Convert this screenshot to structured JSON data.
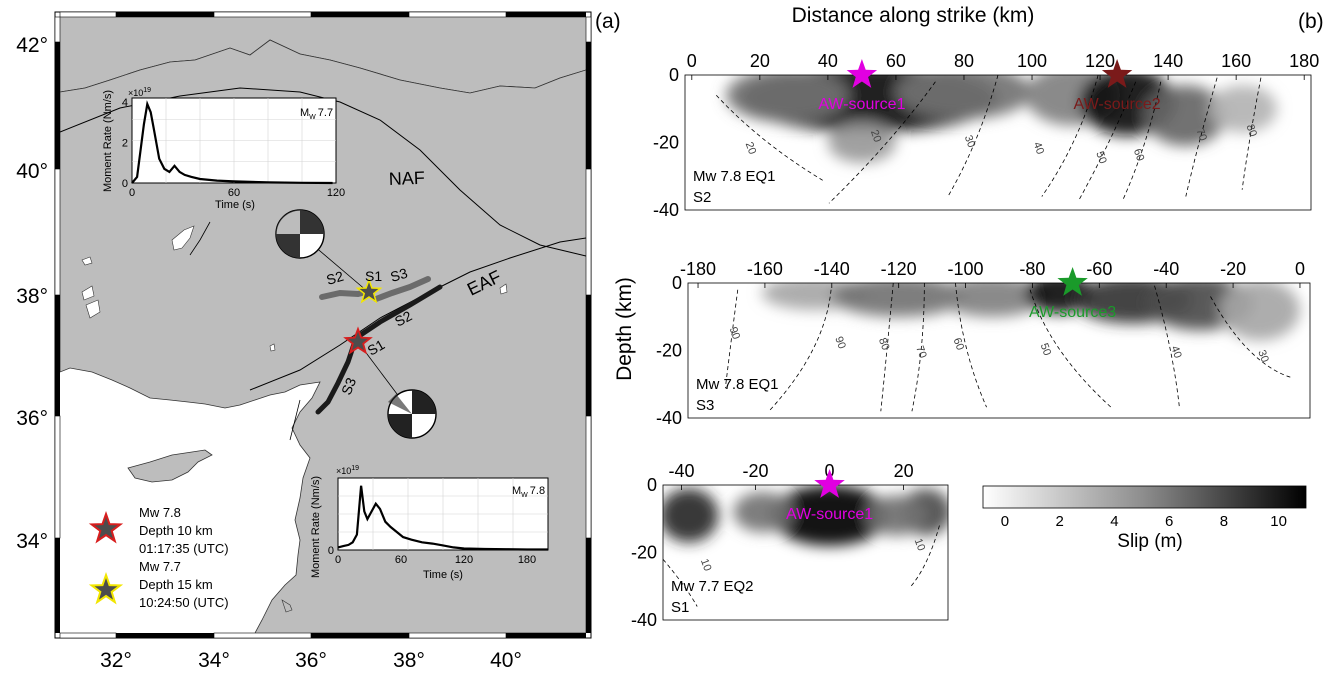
{
  "panel_a": {
    "label": "(a)",
    "lat_ticks": [
      "42°",
      "40°",
      "38°",
      "36°",
      "34°"
    ],
    "lon_ticks": [
      "32°",
      "34°",
      "36°",
      "38°",
      "40°"
    ],
    "fault_labels": {
      "naf": "NAF",
      "eaf": "EAF"
    },
    "mw78_segments": [
      "S1",
      "S2",
      "S3"
    ],
    "mw77_segments": [
      "S1",
      "S2",
      "S3"
    ],
    "legend": [
      {
        "lines": [
          "Mw 7.8",
          "Depth 10 km",
          "01:17:35 (UTC)"
        ],
        "star_fill": "#4d4d4d",
        "star_edge": "#d81e1e"
      },
      {
        "lines": [
          "Mw 7.7",
          "Depth 15 km",
          "10:24:50 (UTC)"
        ],
        "star_fill": "#4d4d4d",
        "star_edge": "#f2e600"
      }
    ],
    "insets": [
      {
        "magnitude": "M",
        "magnitude_sub": "W",
        "magnitude_value": "7.7",
        "ylabel": "Moment Rate (Nm/s)",
        "xlabel": "Time (s)",
        "exponent": "×10",
        "exponent_power": "19",
        "yticks": [
          "0",
          "2",
          "4"
        ],
        "xticks": [
          "0",
          "60",
          "120"
        ],
        "xlim": [
          0,
          120
        ],
        "ylim": [
          0,
          4.2
        ],
        "chart_data": {
          "type": "line",
          "t": [
            0,
            3,
            5,
            7,
            9,
            11,
            13,
            16,
            19,
            22,
            25,
            28,
            31,
            35,
            40,
            50,
            60,
            80,
            100,
            118
          ],
          "rate": [
            0,
            0.3,
            1.6,
            2.9,
            3.9,
            3.5,
            2.6,
            1.2,
            0.7,
            0.55,
            0.85,
            0.55,
            0.4,
            0.3,
            0.2,
            0.12,
            0.08,
            0.03,
            0.01,
            0
          ]
        }
      },
      {
        "magnitude": "M",
        "magnitude_sub": "W",
        "magnitude_value": "7.8",
        "ylabel": "Moment Rate (Nm/s)",
        "xlabel": "Time (s)",
        "exponent": "×10",
        "exponent_power": "19",
        "yticks": [
          "0"
        ],
        "xticks": [
          "0",
          "60",
          "120",
          "180"
        ],
        "xlim": [
          0,
          200
        ],
        "ylim": [
          0,
          2.8
        ],
        "chart_data": {
          "type": "line",
          "t": [
            0,
            5,
            10,
            14,
            18,
            22,
            25,
            28,
            32,
            36,
            40,
            45,
            50,
            56,
            62,
            70,
            80,
            90,
            100,
            110,
            120,
            140,
            160,
            180,
            200
          ],
          "rate": [
            0.1,
            0.15,
            0.2,
            0.3,
            0.6,
            2.5,
            1.5,
            1.2,
            1.5,
            1.8,
            1.6,
            1.1,
            0.9,
            0.7,
            0.5,
            0.4,
            0.3,
            0.25,
            0.18,
            0.1,
            0.06,
            0.04,
            0.03,
            0.02,
            0.02
          ]
        }
      }
    ]
  },
  "panel_b": {
    "label": "(b)",
    "top_axis_title": "Distance along strike (km)",
    "ylabel": "Depth (km)",
    "colorbar": {
      "label": "Slip (m)",
      "ticks": [
        "0",
        "2",
        "4",
        "6",
        "8",
        "10"
      ],
      "range": [
        -0.8,
        11
      ]
    },
    "panels": [
      {
        "name": "Mw 7.8 EQ1",
        "segment": "S2",
        "xticks": [
          "0",
          "20",
          "40",
          "60",
          "80",
          "100",
          "120",
          "140",
          "160",
          "180"
        ],
        "xlim": [
          -2,
          182
        ],
        "yticks": [
          "0",
          "-20",
          "-40"
        ],
        "ylim": [
          -40,
          0
        ],
        "sources": [
          {
            "label": "AW-source1",
            "x": 50,
            "color": "#e100e1"
          },
          {
            "label": "AW-source2",
            "x": 125,
            "color": "#7a1a1a"
          }
        ],
        "contours": [
          "20",
          "20",
          "30",
          "40",
          "50",
          "60",
          "70",
          "80"
        ],
        "slip": [
          {
            "x": 52,
            "z": -7,
            "w": 38,
            "h": 10,
            "amp": 0.95
          },
          {
            "x": 28,
            "z": -6,
            "w": 18,
            "h": 8,
            "amp": 0.55
          },
          {
            "x": 80,
            "z": -5,
            "w": 20,
            "h": 8,
            "amp": 0.55
          },
          {
            "x": 112,
            "z": -6,
            "w": 14,
            "h": 9,
            "amp": 0.5
          },
          {
            "x": 128,
            "z": -8,
            "w": 14,
            "h": 10,
            "amp": 0.95
          },
          {
            "x": 145,
            "z": -12,
            "w": 12,
            "h": 9,
            "amp": 0.6
          },
          {
            "x": 162,
            "z": -10,
            "w": 10,
            "h": 7,
            "amp": 0.3
          },
          {
            "x": 50,
            "z": -20,
            "w": 10,
            "h": 6,
            "amp": 0.4
          }
        ]
      },
      {
        "name": "Mw 7.8 EQ1",
        "segment": "S3",
        "xticks": [
          "-180",
          "-160",
          "-140",
          "-120",
          "-100",
          "-80",
          "-60",
          "-40",
          "-20",
          "0"
        ],
        "xlim": [
          -183,
          3
        ],
        "yticks": [
          "0",
          "-20",
          "-40"
        ],
        "ylim": [
          -40,
          0
        ],
        "sources": [
          {
            "label": "AW-source3",
            "x": -68,
            "color": "#1a9a2a"
          }
        ],
        "contours": [
          "90",
          "90",
          "80",
          "70",
          "60",
          "50",
          "40",
          "30"
        ],
        "slip": [
          {
            "x": -145,
            "z": -3,
            "w": 16,
            "h": 5,
            "amp": 0.35
          },
          {
            "x": -120,
            "z": -4,
            "w": 20,
            "h": 6,
            "amp": 0.55
          },
          {
            "x": -92,
            "z": -4,
            "w": 16,
            "h": 6,
            "amp": 0.5
          },
          {
            "x": -72,
            "z": -3,
            "w": 10,
            "h": 6,
            "amp": 0.95
          },
          {
            "x": -50,
            "z": -5,
            "w": 18,
            "h": 7,
            "amp": 0.8
          },
          {
            "x": -30,
            "z": -6,
            "w": 16,
            "h": 8,
            "amp": 0.7
          },
          {
            "x": -12,
            "z": -8,
            "w": 12,
            "h": 9,
            "amp": 0.35
          }
        ]
      },
      {
        "name": "Mw 7.7 EQ2",
        "segment": "S1",
        "xticks": [
          "-40",
          "-20",
          "0",
          "20"
        ],
        "xlim": [
          -45,
          32
        ],
        "yticks": [
          "0",
          "-20",
          "-40"
        ],
        "ylim": [
          -40,
          0
        ],
        "sources": [
          {
            "label": "AW-source1",
            "x": 0,
            "color": "#e100e1"
          }
        ],
        "contours": [
          "10",
          "10"
        ],
        "slip": [
          {
            "x": -38,
            "z": -9,
            "w": 8,
            "h": 8,
            "amp": 0.85
          },
          {
            "x": 0,
            "z": -9,
            "w": 16,
            "h": 9,
            "amp": 1.0
          },
          {
            "x": 26,
            "z": -8,
            "w": 7,
            "h": 7,
            "amp": 0.7
          },
          {
            "x": -18,
            "z": -8,
            "w": 8,
            "h": 6,
            "amp": 0.55
          },
          {
            "x": 18,
            "z": -9,
            "w": 8,
            "h": 6,
            "amp": 0.55
          }
        ]
      }
    ]
  }
}
